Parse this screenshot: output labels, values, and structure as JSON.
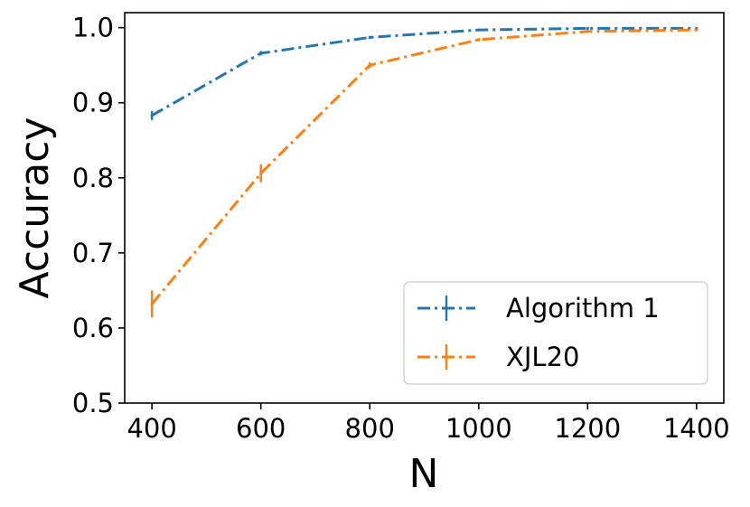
{
  "chart_data": {
    "type": "line",
    "title": "",
    "xlabel": "N",
    "ylabel": "Accuracy",
    "xlim": [
      350,
      1450
    ],
    "ylim": [
      0.5,
      1.02
    ],
    "xticks": [
      400,
      600,
      800,
      1000,
      1200,
      1400
    ],
    "yticks": [
      0.5,
      0.6,
      0.7,
      0.8,
      0.9,
      1.0
    ],
    "xtick_labels": [
      "400",
      "600",
      "800",
      "1000",
      "1200",
      "1400"
    ],
    "ytick_labels": [
      "0.5",
      "0.6",
      "0.7",
      "0.8",
      "0.9",
      "1.0"
    ],
    "grid": false,
    "legend_position": "lower-right",
    "x": [
      400,
      600,
      800,
      1000,
      1200,
      1400
    ],
    "series": [
      {
        "name": "Algorithm 1",
        "color": "#1f77b4",
        "linestyle": "dashdot",
        "values": [
          0.883,
          0.966,
          0.987,
          0.997,
          0.999,
          0.999
        ],
        "errors": [
          0.006,
          0.003,
          0.002,
          0.001,
          0.001,
          0.001
        ]
      },
      {
        "name": "XJL20",
        "color": "#ff7f0e",
        "linestyle": "dashdot",
        "values": [
          0.632,
          0.806,
          0.95,
          0.984,
          0.995,
          0.997
        ],
        "errors": [
          0.018,
          0.012,
          0.004,
          0.002,
          0.001,
          0.001
        ]
      }
    ]
  }
}
